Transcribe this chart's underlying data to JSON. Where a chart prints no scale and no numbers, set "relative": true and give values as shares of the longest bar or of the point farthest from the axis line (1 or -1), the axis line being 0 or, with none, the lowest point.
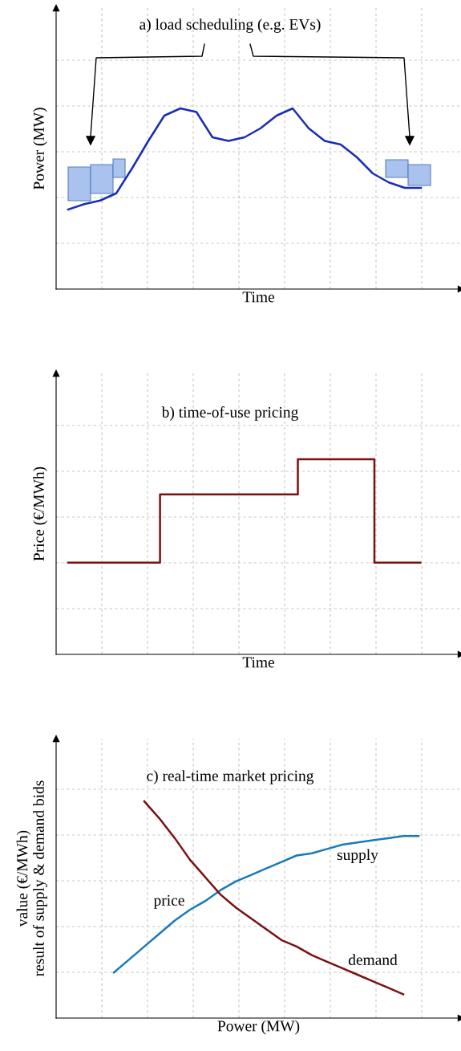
{
  "chart_data": [
    {
      "type": "line",
      "title": "a) load scheduling (e.g. EVs)",
      "xlabel": "Time",
      "ylabel": "Power (MW)",
      "relative": true,
      "grid": true,
      "categories": [
        null,
        null,
        null,
        null,
        null,
        null,
        null,
        null,
        null,
        null,
        null,
        null,
        null,
        null,
        null,
        null,
        null,
        null,
        null,
        null,
        null,
        null,
        null
      ],
      "series": [
        {
          "color": "#1a2db5",
          "values": [
            0.44,
            0.47,
            0.49,
            0.53,
            0.67,
            0.82,
            0.96,
            1,
            0.98,
            0.84,
            0.82,
            0.84,
            0.89,
            0.96,
            1,
            0.89,
            0.82,
            0.8,
            0.73,
            0.64,
            0.59,
            0.56,
            0.56
          ]
        }
      ]
    },
    {
      "type": "step",
      "title": "b) time-of-use pricing",
      "xlabel": "Time",
      "ylabel": "Price (€/MWh)",
      "relative": true,
      "grid": true,
      "categories": [
        null,
        null,
        null,
        null,
        null,
        null,
        null,
        null,
        null,
        null,
        null,
        null,
        null,
        null,
        null,
        null,
        null,
        null,
        null,
        null,
        null,
        null,
        null,
        null
      ],
      "series": [
        {
          "color": "#7a1010",
          "values": [
            0.47,
            0.47,
            0.47,
            0.47,
            0.47,
            0.47,
            0.82,
            0.82,
            0.82,
            0.82,
            0.82,
            0.82,
            0.82,
            0.82,
            0.82,
            1,
            1,
            1,
            1,
            1,
            0.47,
            0.47,
            0.47,
            0.47
          ]
        }
      ]
    },
    {
      "type": "line",
      "title": "c) real-time market pricing",
      "xlabel": "Power (MW)",
      "ylabel": "value (€/MWh)\nresult of supply & demand bids",
      "relative": true,
      "grid": true,
      "annotations": [
        "price"
      ],
      "categories": [
        null,
        null,
        null,
        null,
        null,
        null,
        null,
        null,
        null,
        null,
        null,
        null,
        null,
        null,
        null,
        null,
        null,
        null,
        null,
        null,
        null
      ],
      "series": [
        {
          "name": "supply",
          "color": "#1a7ab8",
          "values": [
            0.21,
            0.27,
            0.33,
            0.39,
            0.45,
            0.5,
            0.54,
            0.59,
            0.63,
            0.66,
            0.69,
            0.72,
            0.75,
            0.76,
            0.78,
            0.8,
            0.81,
            0.82,
            0.83,
            0.84,
            0.84
          ]
        },
        {
          "name": "demand",
          "color": "#7a1010",
          "values": [
            null,
            null,
            1,
            0.92,
            0.83,
            0.73,
            0.65,
            0.57,
            0.51,
            0.46,
            0.41,
            0.36,
            0.33,
            0.29,
            0.26,
            0.23,
            0.2,
            0.17,
            0.14,
            0.11,
            null
          ]
        }
      ]
    }
  ]
}
